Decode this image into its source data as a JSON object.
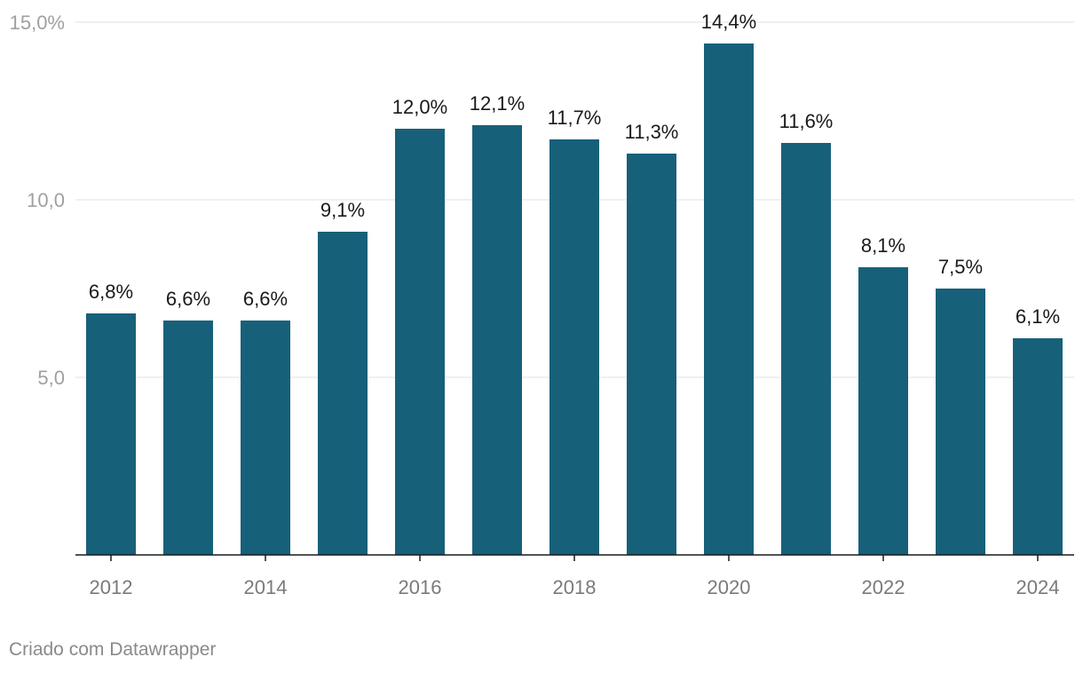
{
  "chart_data": {
    "type": "bar",
    "categories": [
      "2012",
      "2013",
      "2014",
      "2015",
      "2016",
      "2017",
      "2018",
      "2019",
      "2020",
      "2021",
      "2022",
      "2023",
      "2024"
    ],
    "values": [
      6.8,
      6.6,
      6.6,
      9.1,
      12.0,
      12.1,
      11.7,
      11.3,
      14.4,
      11.6,
      8.1,
      7.5,
      6.1
    ],
    "data_labels": [
      "6,8%",
      "6,6%",
      "6,6%",
      "9,1%",
      "12,0%",
      "12,1%",
      "11,7%",
      "11,3%",
      "14,4%",
      "11,6%",
      "8,1%",
      "7,5%",
      "6,1%"
    ],
    "x_tick_labels": [
      "2012",
      "2014",
      "2016",
      "2018",
      "2020",
      "2022",
      "2024"
    ],
    "y_ticks": [
      {
        "value": 5,
        "label": "5,0"
      },
      {
        "value": 10,
        "label": "10,0"
      },
      {
        "value": 15,
        "label": "15,0%"
      }
    ],
    "ylim": [
      0,
      15
    ],
    "grid": true,
    "bar_color": "#17607a",
    "title": "",
    "xlabel": "",
    "ylabel": ""
  },
  "footer": {
    "credit": "Criado com Datawrapper"
  }
}
